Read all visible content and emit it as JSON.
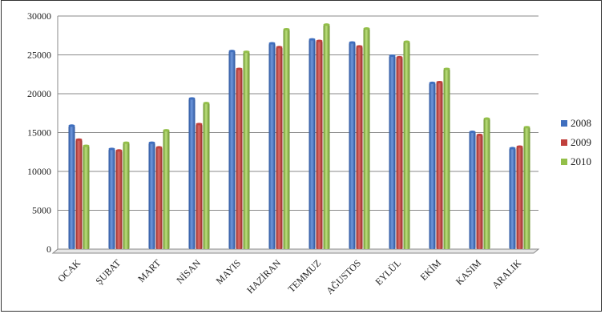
{
  "chart_data": {
    "type": "bar",
    "title": "",
    "xlabel": "",
    "ylabel": "",
    "ylim": [
      0,
      30000
    ],
    "yticks": [
      0,
      5000,
      10000,
      15000,
      20000,
      25000,
      30000
    ],
    "grid": true,
    "legend_position": "right",
    "categories": [
      "OCAK",
      "ŞUBAT",
      "MART",
      "NİSAN",
      "MAYIS",
      "HAZİRAN",
      "TEMMUZ",
      "AĞUSTOS",
      "EYLÜL",
      "EKİM",
      "KASIM",
      "ARALIK"
    ],
    "series": [
      {
        "name": "2008",
        "color": "#3f6fbf",
        "values": [
          15900,
          12900,
          13700,
          19400,
          25500,
          26500,
          27000,
          26600,
          24900,
          21400,
          15100,
          13000
        ]
      },
      {
        "name": "2009",
        "color": "#c0403c",
        "values": [
          14100,
          12700,
          13100,
          16100,
          23200,
          26000,
          26800,
          26100,
          24700,
          21500,
          14700,
          13200
        ]
      },
      {
        "name": "2010",
        "color": "#93bf49",
        "values": [
          13300,
          13700,
          15300,
          18800,
          25400,
          28300,
          28900,
          28400,
          26700,
          23200,
          16800,
          15700
        ]
      }
    ]
  }
}
